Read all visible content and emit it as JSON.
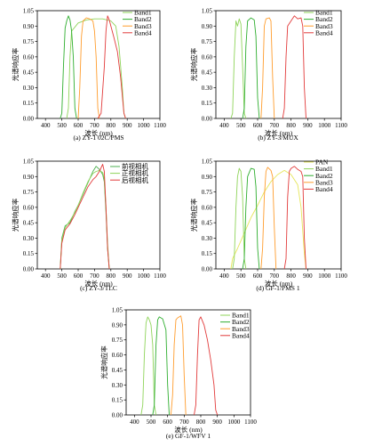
{
  "figure": {
    "ylabel": "光谱响应率",
    "xlabel": "波长 (nm)",
    "xticks": [
      400,
      500,
      600,
      700,
      800,
      900,
      1000,
      1100
    ],
    "yticks": [
      "0.00",
      "0.15",
      "0.30",
      "0.45",
      "0.60",
      "0.75",
      "0.90",
      "1.05"
    ]
  },
  "chart_data": [
    {
      "type": "line",
      "caption": "(a) ZY-1 02C/PMS",
      "xlim": [
        350,
        1100
      ],
      "ylim": [
        0,
        1.05
      ],
      "grid": false,
      "legend": "top-right",
      "series": [
        {
          "name": "Band1",
          "color": "#8fd45a",
          "x": [
            530,
            540,
            550,
            560,
            600,
            650,
            700,
            750,
            800,
            830,
            850,
            870,
            880,
            890
          ],
          "y": [
            0,
            0.1,
            0.6,
            0.85,
            0.93,
            0.96,
            0.97,
            0.97,
            0.95,
            0.9,
            0.7,
            0.3,
            0.05,
            0
          ]
        },
        {
          "name": "Band2",
          "color": "#2fae2f",
          "x": [
            490,
            500,
            510,
            520,
            530,
            540,
            550,
            560,
            570,
            580,
            590
          ],
          "y": [
            0,
            0.05,
            0.5,
            0.88,
            0.95,
            1.0,
            0.96,
            0.85,
            0.6,
            0.1,
            0
          ]
        },
        {
          "name": "Band3",
          "color": "#ff9d2e",
          "x": [
            600,
            610,
            620,
            630,
            650,
            670,
            690,
            700,
            710,
            720,
            730
          ],
          "y": [
            0,
            0.3,
            0.8,
            0.95,
            0.98,
            0.97,
            0.95,
            0.85,
            0.6,
            0.1,
            0
          ]
        },
        {
          "name": "Band4",
          "color": "#e23b3b",
          "x": [
            720,
            740,
            760,
            770,
            780,
            790,
            800,
            820,
            840,
            860,
            880,
            890
          ],
          "y": [
            0,
            0.05,
            0.5,
            0.85,
            1.0,
            0.96,
            0.9,
            0.78,
            0.65,
            0.4,
            0.05,
            0
          ]
        }
      ]
    },
    {
      "type": "line",
      "caption": "(b) ZY-3/MUX",
      "xlim": [
        350,
        1100
      ],
      "ylim": [
        0,
        1.05
      ],
      "grid": false,
      "legend": "top-right",
      "series": [
        {
          "name": "Band1",
          "color": "#8fd45a",
          "x": [
            440,
            450,
            460,
            470,
            480,
            490,
            500,
            510,
            520,
            530
          ],
          "y": [
            0,
            0.05,
            0.6,
            0.95,
            0.9,
            0.97,
            0.92,
            0.5,
            0.05,
            0
          ]
        },
        {
          "name": "Band2",
          "color": "#2fae2f",
          "x": [
            510,
            520,
            530,
            540,
            560,
            580,
            590,
            600,
            610
          ],
          "y": [
            0,
            0.1,
            0.7,
            0.95,
            0.98,
            0.96,
            0.8,
            0.2,
            0
          ]
        },
        {
          "name": "Band3",
          "color": "#ff9d2e",
          "x": [
            620,
            630,
            640,
            650,
            670,
            680,
            690,
            700
          ],
          "y": [
            0,
            0.3,
            0.9,
            0.97,
            0.98,
            0.95,
            0.4,
            0
          ]
        },
        {
          "name": "Band4",
          "color": "#e23b3b",
          "x": [
            750,
            760,
            770,
            780,
            800,
            820,
            840,
            860,
            870,
            880,
            890
          ],
          "y": [
            0,
            0.1,
            0.6,
            0.9,
            0.95,
            1.0,
            0.97,
            0.98,
            0.9,
            0.3,
            0
          ]
        }
      ]
    },
    {
      "type": "line",
      "caption": "(c) ZY-3/TLC",
      "xlim": [
        350,
        1100
      ],
      "ylim": [
        0,
        1.05
      ],
      "grid": false,
      "legend": "top-right",
      "series": [
        {
          "name": "前视相机",
          "color": "#4caf50",
          "x": [
            490,
            500,
            520,
            550,
            580,
            600,
            630,
            660,
            690,
            710,
            730,
            750,
            760,
            770,
            780,
            790
          ],
          "y": [
            0,
            0.3,
            0.42,
            0.45,
            0.56,
            0.62,
            0.73,
            0.84,
            0.95,
            1.0,
            0.97,
            0.92,
            0.85,
            0.55,
            0.2,
            0
          ]
        },
        {
          "name": "正视相机",
          "color": "#8fd45a",
          "x": [
            490,
            500,
            520,
            550,
            580,
            600,
            630,
            660,
            690,
            710,
            730,
            750,
            760,
            770,
            780,
            790
          ],
          "y": [
            0,
            0.28,
            0.4,
            0.47,
            0.55,
            0.62,
            0.74,
            0.85,
            0.93,
            0.95,
            0.96,
            0.94,
            0.88,
            0.6,
            0.25,
            0
          ]
        },
        {
          "name": "后视相机",
          "color": "#e23b3b",
          "x": [
            490,
            500,
            520,
            550,
            580,
            600,
            630,
            660,
            690,
            710,
            730,
            750,
            760,
            770,
            780,
            790
          ],
          "y": [
            0,
            0.25,
            0.38,
            0.44,
            0.53,
            0.6,
            0.7,
            0.8,
            0.87,
            0.9,
            0.95,
            1.02,
            0.95,
            0.6,
            0.2,
            0
          ]
        }
      ]
    },
    {
      "type": "line",
      "caption": "(d) GF-1/PMS 1",
      "xlim": [
        350,
        1100
      ],
      "ylim": [
        0,
        1.05
      ],
      "grid": false,
      "legend": "top-right",
      "series": [
        {
          "name": "PAN",
          "color": "#e6e65a",
          "x": [
            440,
            450,
            480,
            520,
            560,
            600,
            640,
            680,
            720,
            760,
            800,
            840,
            860,
            880,
            890
          ],
          "y": [
            0,
            0.1,
            0.2,
            0.35,
            0.5,
            0.62,
            0.75,
            0.85,
            0.92,
            0.96,
            0.92,
            0.82,
            0.6,
            0.15,
            0
          ]
        },
        {
          "name": "Band1",
          "color": "#8fd45a",
          "x": [
            450,
            460,
            470,
            480,
            490,
            500,
            510,
            520,
            530
          ],
          "y": [
            0,
            0.1,
            0.6,
            0.9,
            0.98,
            0.95,
            0.7,
            0.1,
            0
          ]
        },
        {
          "name": "Band2",
          "color": "#2fae2f",
          "x": [
            510,
            520,
            530,
            540,
            560,
            580,
            590,
            600,
            610
          ],
          "y": [
            0,
            0.1,
            0.6,
            0.9,
            0.98,
            0.97,
            0.8,
            0.2,
            0
          ]
        },
        {
          "name": "Band3",
          "color": "#ff9d2e",
          "x": [
            620,
            630,
            640,
            650,
            660,
            680,
            690,
            700,
            710
          ],
          "y": [
            0,
            0.2,
            0.7,
            0.95,
            0.99,
            0.96,
            0.9,
            0.4,
            0
          ]
        },
        {
          "name": "Band4",
          "color": "#e23b3b",
          "x": [
            760,
            770,
            780,
            790,
            800,
            820,
            840,
            860,
            870,
            880,
            890
          ],
          "y": [
            0,
            0.1,
            0.7,
            0.95,
            0.98,
            1.0,
            0.97,
            0.95,
            0.9,
            0.3,
            0
          ]
        }
      ]
    },
    {
      "type": "line",
      "caption": "(e) GF-1/WFV 1",
      "xlim": [
        350,
        1100
      ],
      "ylim": [
        0,
        1.05
      ],
      "grid": false,
      "legend": "top-right",
      "series": [
        {
          "name": "Band1",
          "color": "#8fd45a",
          "x": [
            440,
            450,
            460,
            470,
            480,
            490,
            500,
            510,
            520,
            530
          ],
          "y": [
            0,
            0.1,
            0.6,
            0.92,
            0.98,
            0.95,
            0.9,
            0.7,
            0.1,
            0
          ]
        },
        {
          "name": "Band2",
          "color": "#2fae2f",
          "x": [
            510,
            520,
            530,
            540,
            550,
            570,
            590,
            600,
            610
          ],
          "y": [
            0,
            0.1,
            0.7,
            0.95,
            0.98,
            0.96,
            0.85,
            0.3,
            0
          ]
        },
        {
          "name": "Band3",
          "color": "#ff9d2e",
          "x": [
            620,
            630,
            640,
            650,
            660,
            680,
            690,
            700,
            710
          ],
          "y": [
            0,
            0.2,
            0.7,
            0.95,
            0.97,
            0.99,
            0.9,
            0.4,
            0
          ]
        },
        {
          "name": "Band4",
          "color": "#e23b3b",
          "x": [
            760,
            770,
            780,
            790,
            800,
            820,
            840,
            860,
            880,
            890,
            900
          ],
          "y": [
            0,
            0.1,
            0.6,
            0.95,
            0.98,
            0.9,
            0.75,
            0.55,
            0.3,
            0.05,
            0
          ]
        }
      ]
    }
  ]
}
